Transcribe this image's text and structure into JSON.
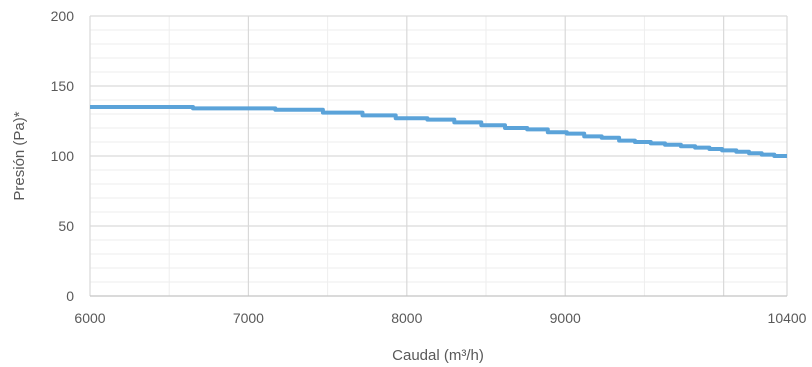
{
  "chart_data": {
    "type": "line",
    "xlabel": "Caudal (m³/h)",
    "ylabel": "Presión (Pa)*",
    "xlim": [
      6000,
      10400
    ],
    "ylim": [
      0,
      200
    ],
    "x_ticks": [
      {
        "value": 6000,
        "label": "6000"
      },
      {
        "value": 7000,
        "label": "7000"
      },
      {
        "value": 8000,
        "label": "8000"
      },
      {
        "value": 9000,
        "label": "9000"
      },
      {
        "value": 10400,
        "label": "10400"
      }
    ],
    "y_ticks": [
      {
        "value": 0,
        "label": "0"
      },
      {
        "value": 50,
        "label": "50"
      },
      {
        "value": 100,
        "label": "100"
      },
      {
        "value": 150,
        "label": "150"
      },
      {
        "value": 200,
        "label": "200"
      }
    ],
    "grid": true,
    "legend": "none",
    "colors": {
      "series": "#5ba3d9",
      "grid_major": "#d9d9d9",
      "grid_minor": "#eeeeee",
      "text": "#595959"
    },
    "series": [
      {
        "x": [
          6000,
          6650,
          6650,
          7170,
          7170,
          7470,
          7470,
          7720,
          7720,
          7930,
          7930,
          8130,
          8130,
          8300,
          8300,
          8470,
          8470,
          8620,
          8620,
          8760,
          8760,
          8890,
          8890,
          9010,
          9010,
          9120,
          9120,
          9230,
          9230,
          9340,
          9340,
          9440,
          9440,
          9540,
          9540,
          9630,
          9630,
          9730,
          9730,
          9820,
          9820,
          9910,
          9910,
          9990,
          9990,
          10080,
          10080,
          10160,
          10160,
          10240,
          10240,
          10320,
          10320,
          10400
        ],
        "y": [
          135,
          135,
          134,
          134,
          133,
          133,
          131,
          131,
          129,
          129,
          127,
          127,
          126,
          126,
          124,
          124,
          122,
          122,
          120,
          120,
          119,
          119,
          117,
          117,
          116,
          116,
          114,
          114,
          113,
          113,
          111,
          111,
          110,
          110,
          109,
          109,
          108,
          108,
          107,
          107,
          106,
          106,
          105,
          105,
          104,
          104,
          103,
          103,
          102,
          102,
          101,
          101,
          100,
          100
        ]
      }
    ]
  }
}
